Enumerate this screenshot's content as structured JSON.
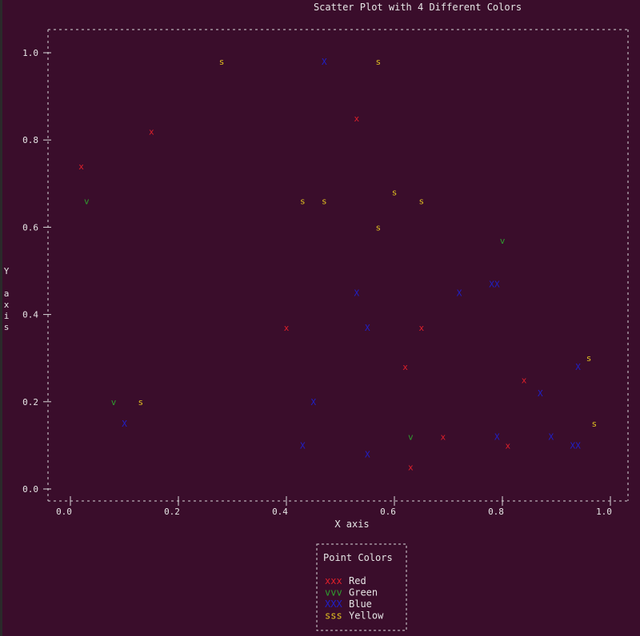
{
  "colors": {
    "background": "#3a0d2b",
    "frame": "#d8d8d8",
    "text": "#e6e6e6",
    "red": "#e0202a",
    "green": "#2f9e2f",
    "blue": "#2020c8",
    "yellow": "#e0c020"
  },
  "chart_data": {
    "type": "scatter",
    "title": "Scatter Plot with 4 Different Colors",
    "xlabel": "X axis",
    "ylabel": "Y axis",
    "xlim": [
      0.0,
      1.0
    ],
    "ylim": [
      0.0,
      1.0
    ],
    "x_ticks": [
      "0.0",
      "0.2",
      "0.4",
      "0.6",
      "0.8",
      "1.0"
    ],
    "y_ticks": [
      "0.0",
      "0.2",
      "0.4",
      "0.6",
      "0.8",
      "1.0"
    ],
    "grid": false,
    "legend_position": "bottom-center",
    "legend_title": "Point Colors",
    "series": [
      {
        "name": "Red",
        "marker": "x",
        "legend_marker": "xxx",
        "color": "red",
        "points": [
          [
            0.02,
            0.74
          ],
          [
            0.15,
            0.82
          ],
          [
            0.4,
            0.37
          ],
          [
            0.53,
            0.85
          ],
          [
            0.62,
            0.28
          ],
          [
            0.63,
            0.05
          ],
          [
            0.65,
            0.37
          ],
          [
            0.69,
            0.12
          ],
          [
            0.81,
            0.1
          ],
          [
            0.84,
            0.25
          ]
        ]
      },
      {
        "name": "Green",
        "marker": "v",
        "legend_marker": "vvv",
        "color": "green",
        "points": [
          [
            0.03,
            0.66
          ],
          [
            0.08,
            0.2
          ],
          [
            0.63,
            0.12
          ],
          [
            0.8,
            0.57
          ]
        ]
      },
      {
        "name": "Blue",
        "marker": "X",
        "legend_marker": "XXX",
        "color": "blue",
        "points": [
          [
            0.1,
            0.15
          ],
          [
            0.43,
            0.1
          ],
          [
            0.45,
            0.2
          ],
          [
            0.47,
            0.98
          ],
          [
            0.53,
            0.45
          ],
          [
            0.55,
            0.37
          ],
          [
            0.55,
            0.08
          ],
          [
            0.72,
            0.45
          ],
          [
            0.78,
            0.47
          ],
          [
            0.79,
            0.47
          ],
          [
            0.79,
            0.12
          ],
          [
            0.87,
            0.22
          ],
          [
            0.89,
            0.12
          ],
          [
            0.93,
            0.1
          ],
          [
            0.94,
            0.1
          ],
          [
            0.94,
            0.28
          ]
        ]
      },
      {
        "name": "Yellow",
        "marker": "s",
        "legend_marker": "sss",
        "color": "yellow",
        "points": [
          [
            0.13,
            0.2
          ],
          [
            0.28,
            0.98
          ],
          [
            0.43,
            0.66
          ],
          [
            0.47,
            0.66
          ],
          [
            0.57,
            0.98
          ],
          [
            0.57,
            0.6
          ],
          [
            0.6,
            0.68
          ],
          [
            0.65,
            0.66
          ],
          [
            0.96,
            0.3
          ],
          [
            0.97,
            0.15
          ]
        ]
      }
    ]
  }
}
